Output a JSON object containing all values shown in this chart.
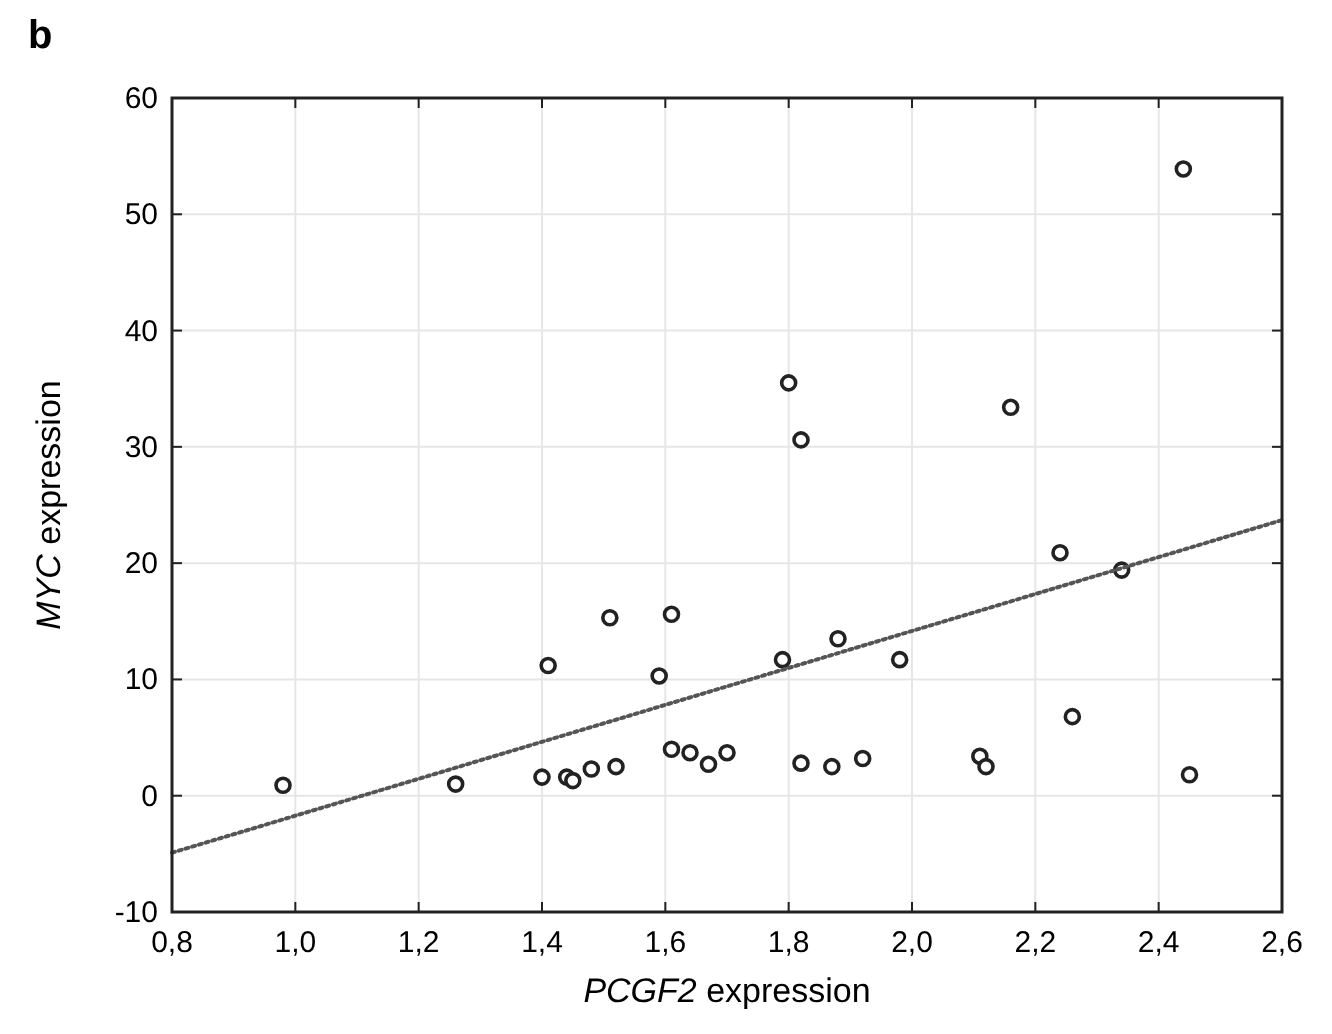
{
  "chart_data": {
    "type": "scatter",
    "title": "b",
    "xlabel": "PCGF2 expression",
    "ylabel": "MYC expression",
    "xlim": [
      0.8,
      2.6
    ],
    "ylim": [
      -10,
      60
    ],
    "xticks": [
      {
        "value": 0.8,
        "label": "0,8"
      },
      {
        "value": 1.0,
        "label": "1,0"
      },
      {
        "value": 1.2,
        "label": "1,2"
      },
      {
        "value": 1.4,
        "label": "1,4"
      },
      {
        "value": 1.6,
        "label": "1,6"
      },
      {
        "value": 1.8,
        "label": "1,8"
      },
      {
        "value": 2.0,
        "label": "2,0"
      },
      {
        "value": 2.2,
        "label": "2,2"
      },
      {
        "value": 2.4,
        "label": "2,4"
      },
      {
        "value": 2.6,
        "label": "2,6"
      }
    ],
    "yticks": [
      -10,
      0,
      10,
      20,
      30,
      40,
      50,
      60
    ],
    "grid": true,
    "marker": "circle",
    "series": [
      {
        "color": "#222222",
        "x": [
          0.98,
          1.26,
          1.4,
          1.44,
          1.45,
          1.48,
          1.52,
          1.41,
          1.51,
          1.61,
          1.59,
          1.61,
          1.64,
          1.67,
          1.7,
          1.79,
          1.88,
          1.98,
          1.82,
          1.87,
          1.92,
          2.11,
          2.12,
          2.24,
          2.34,
          2.26,
          2.45,
          1.8,
          1.82,
          2.16,
          2.44
        ],
        "values": [
          0.9,
          1.0,
          1.6,
          1.6,
          1.3,
          2.3,
          2.5,
          11.2,
          15.3,
          15.6,
          10.3,
          4.0,
          3.7,
          2.7,
          3.7,
          11.7,
          13.5,
          11.7,
          2.8,
          2.5,
          3.2,
          3.4,
          2.5,
          20.9,
          19.4,
          6.8,
          1.8,
          35.5,
          30.6,
          33.4,
          53.9
        ]
      },
      {
        "type": "line",
        "color": "#555555",
        "line_style": "dotted",
        "marker": "none",
        "x": [
          0.8,
          2.6
        ],
        "values": [
          -4.9,
          23.7
        ]
      }
    ]
  }
}
